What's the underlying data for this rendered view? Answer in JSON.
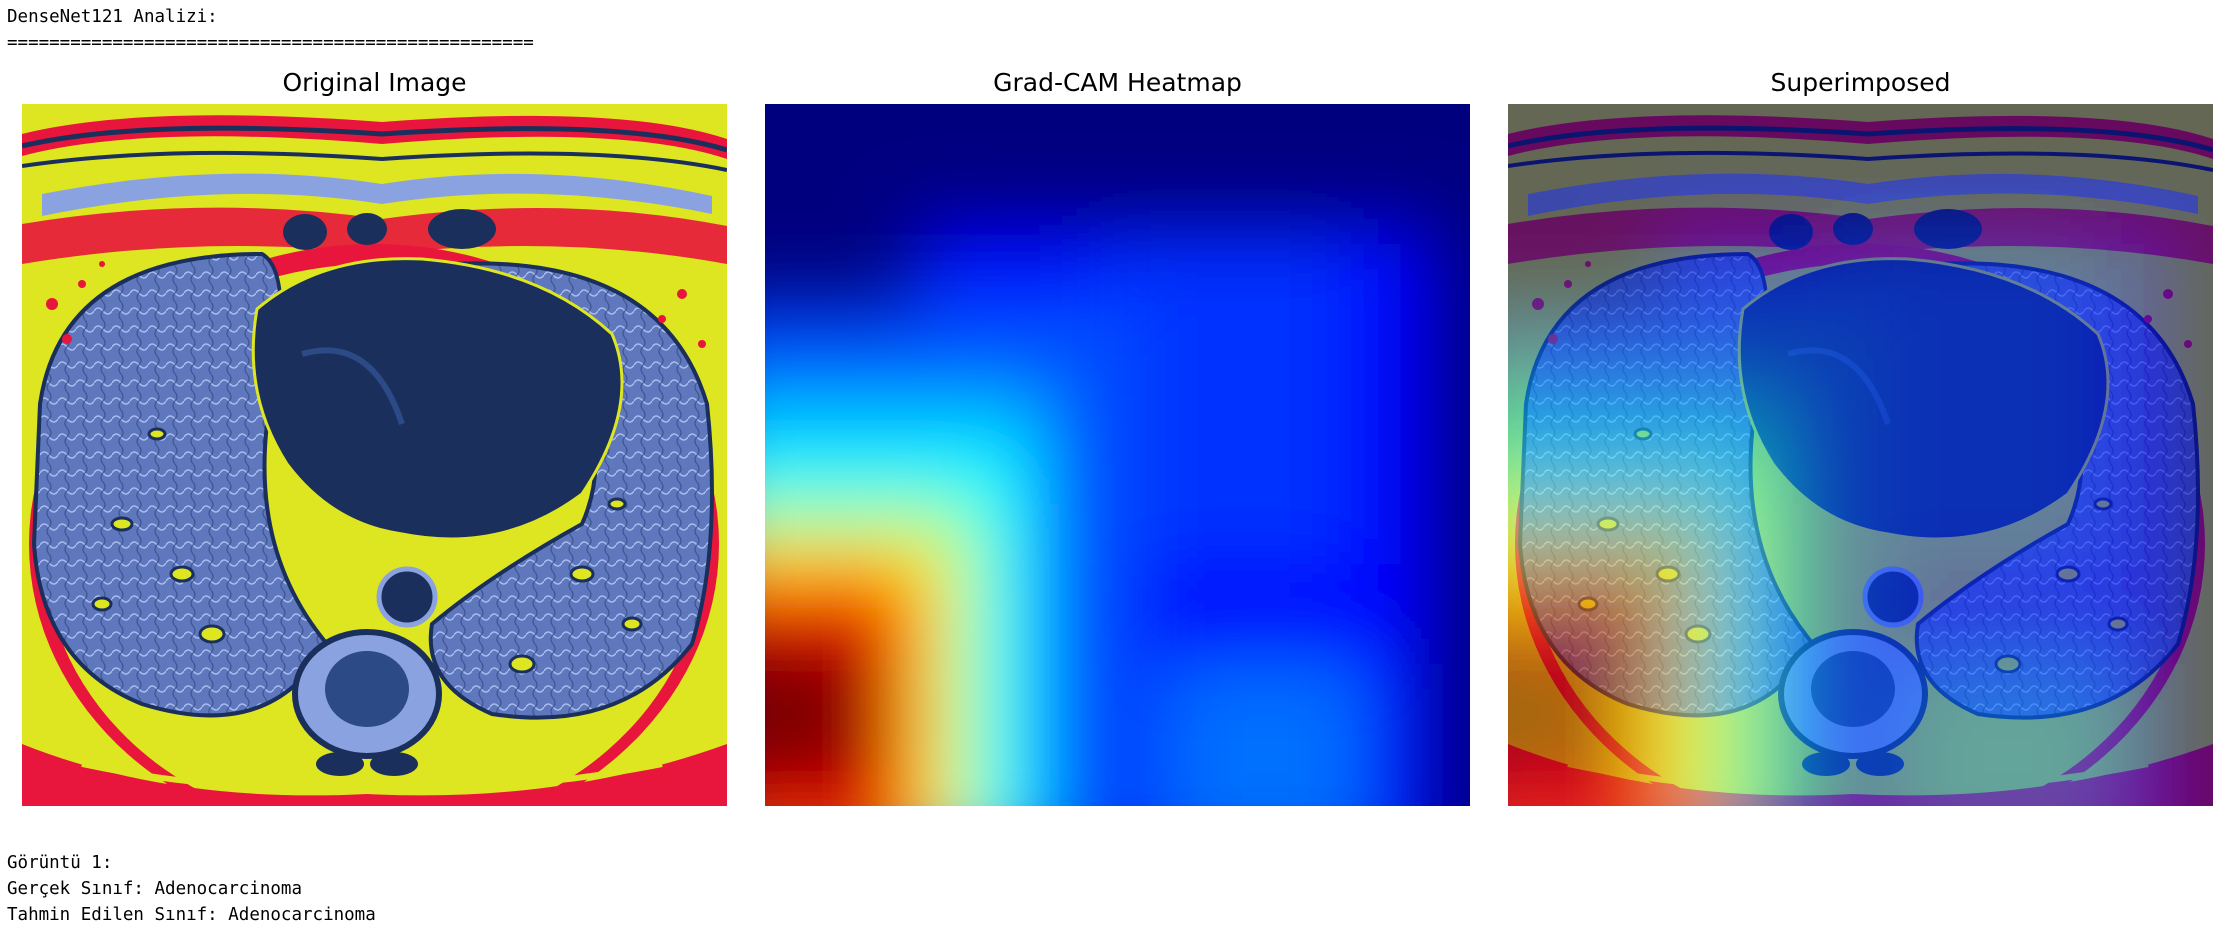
{
  "output": {
    "header_title": "DenseNet121 Analizi:",
    "separator": "==================================================",
    "result_index": "Görüntü 1:",
    "true_class": "Gerçek Sınıf: Adenocarcinoma",
    "predicted_class": "Tahmin Edilen Sınıf: Adenocarcinoma"
  },
  "figure": {
    "panels": [
      {
        "title": "Original Image",
        "icon": "ct-scan-image"
      },
      {
        "title": "Grad-CAM Heatmap",
        "icon": "jet-colormap-heatmap"
      },
      {
        "title": "Superimposed",
        "icon": "overlay-image"
      }
    ]
  },
  "colors": {
    "ct_yellow": "#dde620",
    "ct_red": "#e8153c",
    "ct_navy": "#1a2f5c",
    "ct_lightblue": "#8aa3e0",
    "heat_deep_blue": "#00007f",
    "heat_blue": "#0000ff",
    "heat_cyan": "#00ffff",
    "heat_yellow": "#ffff00",
    "heat_red": "#ff0000",
    "heat_dark_red": "#7f0000"
  }
}
